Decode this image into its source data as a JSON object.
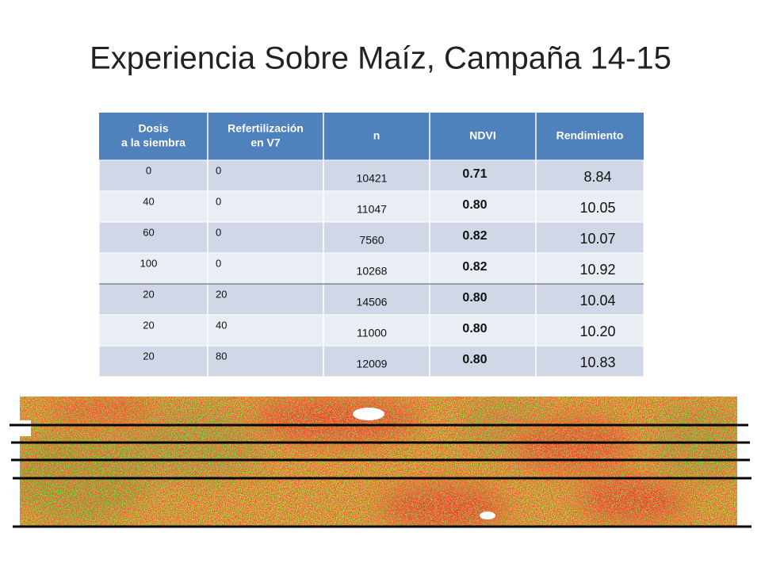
{
  "title": "Experiencia Sobre Maíz, Campaña 14-15",
  "table": {
    "header": [
      [
        "Dosis",
        "a la siembra"
      ],
      [
        "Refertilización",
        "en V7"
      ],
      [
        "n"
      ],
      [
        "NDVI"
      ],
      [
        "Rendimiento"
      ]
    ],
    "rows": [
      [
        "0",
        "0",
        "10421",
        "0.71",
        "8.84"
      ],
      [
        "40",
        "0",
        "11047",
        "0.80",
        "10.05"
      ],
      [
        "60",
        "0",
        "7560",
        "0.82",
        "10.07"
      ],
      [
        "100",
        "0",
        "10268",
        "0.82",
        "10.92"
      ],
      [
        "20",
        "20",
        "14506",
        "0.80",
        "10.04"
      ],
      [
        "20",
        "40",
        "11000",
        "0.80",
        "10.20"
      ],
      [
        "20",
        "80",
        "12009",
        "0.80",
        "10.83"
      ]
    ]
  }
}
